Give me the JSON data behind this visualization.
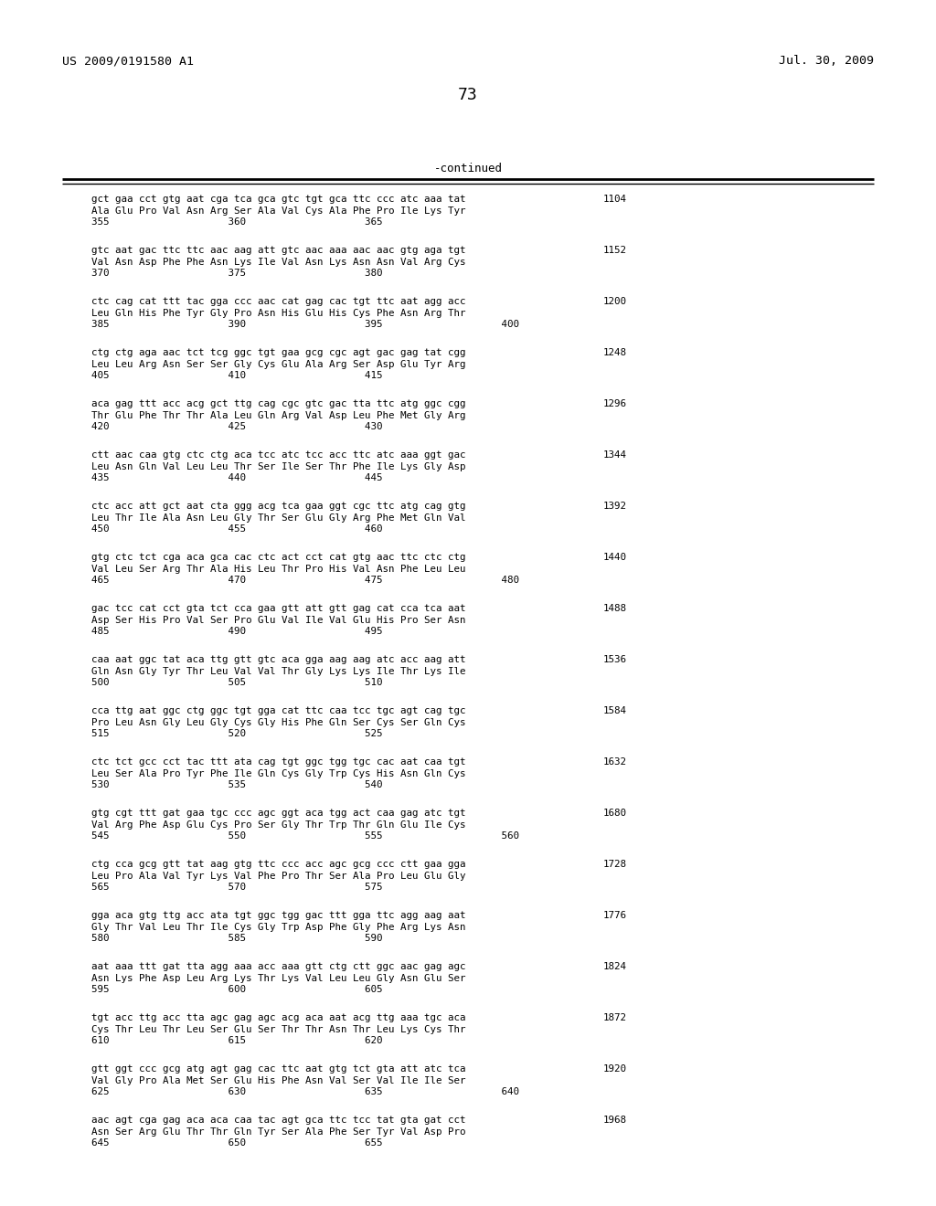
{
  "page_header_left": "US 2009/0191580 A1",
  "page_header_right": "Jul. 30, 2009",
  "page_number": "73",
  "continued_label": "-continued",
  "background_color": "#ffffff",
  "text_color": "#000000",
  "header_font_size": 9.5,
  "body_font_size": 7.8,
  "page_num_font_size": 13,
  "continued_font_size": 9,
  "line_thickness": 1.5,
  "content_blocks": [
    {
      "dna": "gct gaa cct gtg aat cga tca gca gtc tgt gca ttc ccc atc aaa tat",
      "aa": "Ala Glu Pro Val Asn Arg Ser Ala Val Cys Ala Phe Pro Ile Lys Tyr",
      "nums": "355                    360                    365",
      "right_num": "1104"
    },
    {
      "dna": "gtc aat gac ttc ttc aac aag att gtc aac aaa aac aac gtg aga tgt",
      "aa": "Val Asn Asp Phe Phe Asn Lys Ile Val Asn Lys Asn Asn Val Arg Cys",
      "nums": "370                    375                    380",
      "right_num": "1152"
    },
    {
      "dna": "ctc cag cat ttt tac gga ccc aac cat gag cac tgt ttc aat agg acc",
      "aa": "Leu Gln His Phe Tyr Gly Pro Asn His Glu His Cys Phe Asn Arg Thr",
      "nums": "385                    390                    395                    400",
      "right_num": "1200"
    },
    {
      "dna": "ctg ctg aga aac tct tcg ggc tgt gaa gcg cgc agt gac gag tat cgg",
      "aa": "Leu Leu Arg Asn Ser Ser Gly Cys Glu Ala Arg Ser Asp Glu Tyr Arg",
      "nums": "405                    410                    415",
      "right_num": "1248"
    },
    {
      "dna": "aca gag ttt acc acg gct ttg cag cgc gtc gac tta ttc atg ggc cgg",
      "aa": "Thr Glu Phe Thr Thr Ala Leu Gln Arg Val Asp Leu Phe Met Gly Arg",
      "nums": "420                    425                    430",
      "right_num": "1296"
    },
    {
      "dna": "ctt aac caa gtg ctc ctg aca tcc atc tcc acc ttc atc aaa ggt gac",
      "aa": "Leu Asn Gln Val Leu Leu Thr Ser Ile Ser Thr Phe Ile Lys Gly Asp",
      "nums": "435                    440                    445",
      "right_num": "1344"
    },
    {
      "dna": "ctc acc att gct aat cta ggg acg tca gaa ggt cgc ttc atg cag gtg",
      "aa": "Leu Thr Ile Ala Asn Leu Gly Thr Ser Glu Gly Arg Phe Met Gln Val",
      "nums": "450                    455                    460",
      "right_num": "1392"
    },
    {
      "dna": "gtg ctc tct cga aca gca cac ctc act cct cat gtg aac ttc ctc ctg",
      "aa": "Val Leu Ser Arg Thr Ala His Leu Thr Pro His Val Asn Phe Leu Leu",
      "nums": "465                    470                    475                    480",
      "right_num": "1440"
    },
    {
      "dna": "gac tcc cat cct gta tct cca gaa gtt att gtt gag cat cca tca aat",
      "aa": "Asp Ser His Pro Val Ser Pro Glu Val Ile Val Glu His Pro Ser Asn",
      "nums": "485                    490                    495",
      "right_num": "1488"
    },
    {
      "dna": "caa aat ggc tat aca ttg gtt gtc aca gga aag aag atc acc aag att",
      "aa": "Gln Asn Gly Tyr Thr Leu Val Val Thr Gly Lys Lys Ile Thr Lys Ile",
      "nums": "500                    505                    510",
      "right_num": "1536"
    },
    {
      "dna": "cca ttg aat ggc ctg ggc tgt gga cat ttc caa tcc tgc agt cag tgc",
      "aa": "Pro Leu Asn Gly Leu Gly Cys Gly His Phe Gln Ser Cys Ser Gln Cys",
      "nums": "515                    520                    525",
      "right_num": "1584"
    },
    {
      "dna": "ctc tct gcc cct tac ttt ata cag tgt ggc tgg tgc cac aat caa tgt",
      "aa": "Leu Ser Ala Pro Tyr Phe Ile Gln Cys Gly Trp Cys His Asn Gln Cys",
      "nums": "530                    535                    540",
      "right_num": "1632"
    },
    {
      "dna": "gtg cgt ttt gat gaa tgc ccc agc ggt aca tgg act caa gag atc tgt",
      "aa": "Val Arg Phe Asp Glu Cys Pro Ser Gly Thr Trp Thr Gln Glu Ile Cys",
      "nums": "545                    550                    555                    560",
      "right_num": "1680"
    },
    {
      "dna": "ctg cca gcg gtt tat aag gtg ttc ccc acc agc gcg ccc ctt gaa gga",
      "aa": "Leu Pro Ala Val Tyr Lys Val Phe Pro Thr Ser Ala Pro Leu Glu Gly",
      "nums": "565                    570                    575",
      "right_num": "1728"
    },
    {
      "dna": "gga aca gtg ttg acc ata tgt ggc tgg gac ttt gga ttc agg aag aat",
      "aa": "Gly Thr Val Leu Thr Ile Cys Gly Trp Asp Phe Gly Phe Arg Lys Asn",
      "nums": "580                    585                    590",
      "right_num": "1776"
    },
    {
      "dna": "aat aaa ttt gat tta agg aaa acc aaa gtt ctg ctt ggc aac gag agc",
      "aa": "Asn Lys Phe Asp Leu Arg Lys Thr Lys Val Leu Leu Gly Asn Glu Ser",
      "nums": "595                    600                    605",
      "right_num": "1824"
    },
    {
      "dna": "tgt acc ttg acc tta agc gag agc acg aca aat acg ttg aaa tgc aca",
      "aa": "Cys Thr Leu Thr Leu Ser Glu Ser Thr Thr Asn Thr Leu Lys Cys Thr",
      "nums": "610                    615                    620",
      "right_num": "1872"
    },
    {
      "dna": "gtt ggt ccc gcg atg agt gag cac ttc aat gtg tct gta att atc tca",
      "aa": "Val Gly Pro Ala Met Ser Glu His Phe Asn Val Ser Val Ile Ile Ser",
      "nums": "625                    630                    635                    640",
      "right_num": "1920"
    },
    {
      "dna": "aac agt cga gag aca aca caa tac agt gca ttc tcc tat gta gat cct",
      "aa": "Asn Ser Arg Glu Thr Thr Gln Tyr Ser Ala Phe Ser Tyr Val Asp Pro",
      "nums": "645                    650                    655",
      "right_num": "1968"
    }
  ]
}
